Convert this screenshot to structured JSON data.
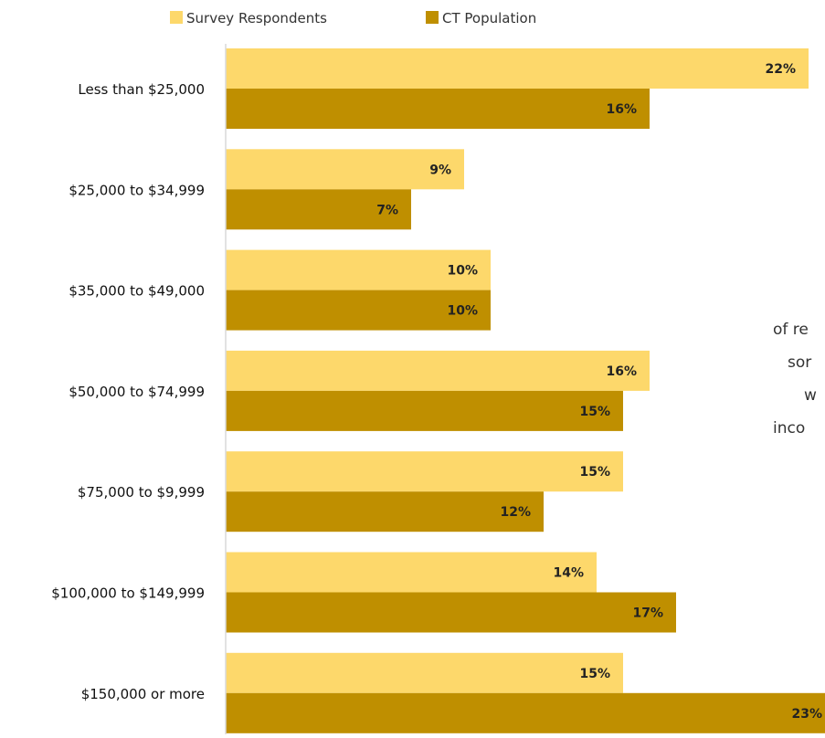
{
  "chart_data": {
    "type": "bar",
    "orientation": "horizontal",
    "categories": [
      "Less than $25,000",
      "$25,000 to $34,999",
      "$35,000 to $49,000",
      "$50,000 to $74,999",
      "$75,000 to $9,999",
      "$100,000 to $149,999",
      "$150,000 or more"
    ],
    "series": [
      {
        "name": "Survey Respondents",
        "color": "#FDD86B",
        "values": [
          22,
          9,
          10,
          16,
          15,
          14,
          15
        ],
        "labels": [
          "22%",
          "9%",
          "10%",
          "16%",
          "15%",
          "14%",
          "15%"
        ]
      },
      {
        "name": "CT Population",
        "color": "#BF8F00",
        "values": [
          16,
          7,
          10,
          15,
          12,
          17,
          23
        ],
        "labels": [
          "16%",
          "7%",
          "10%",
          "15%",
          "12%",
          "17%",
          "23%"
        ]
      }
    ],
    "xlim": [
      0,
      22
    ],
    "legend_position": "top",
    "grid": false
  },
  "side_text": {
    "lines": [
      "of re",
      "sor",
      "w",
      "inco"
    ]
  }
}
